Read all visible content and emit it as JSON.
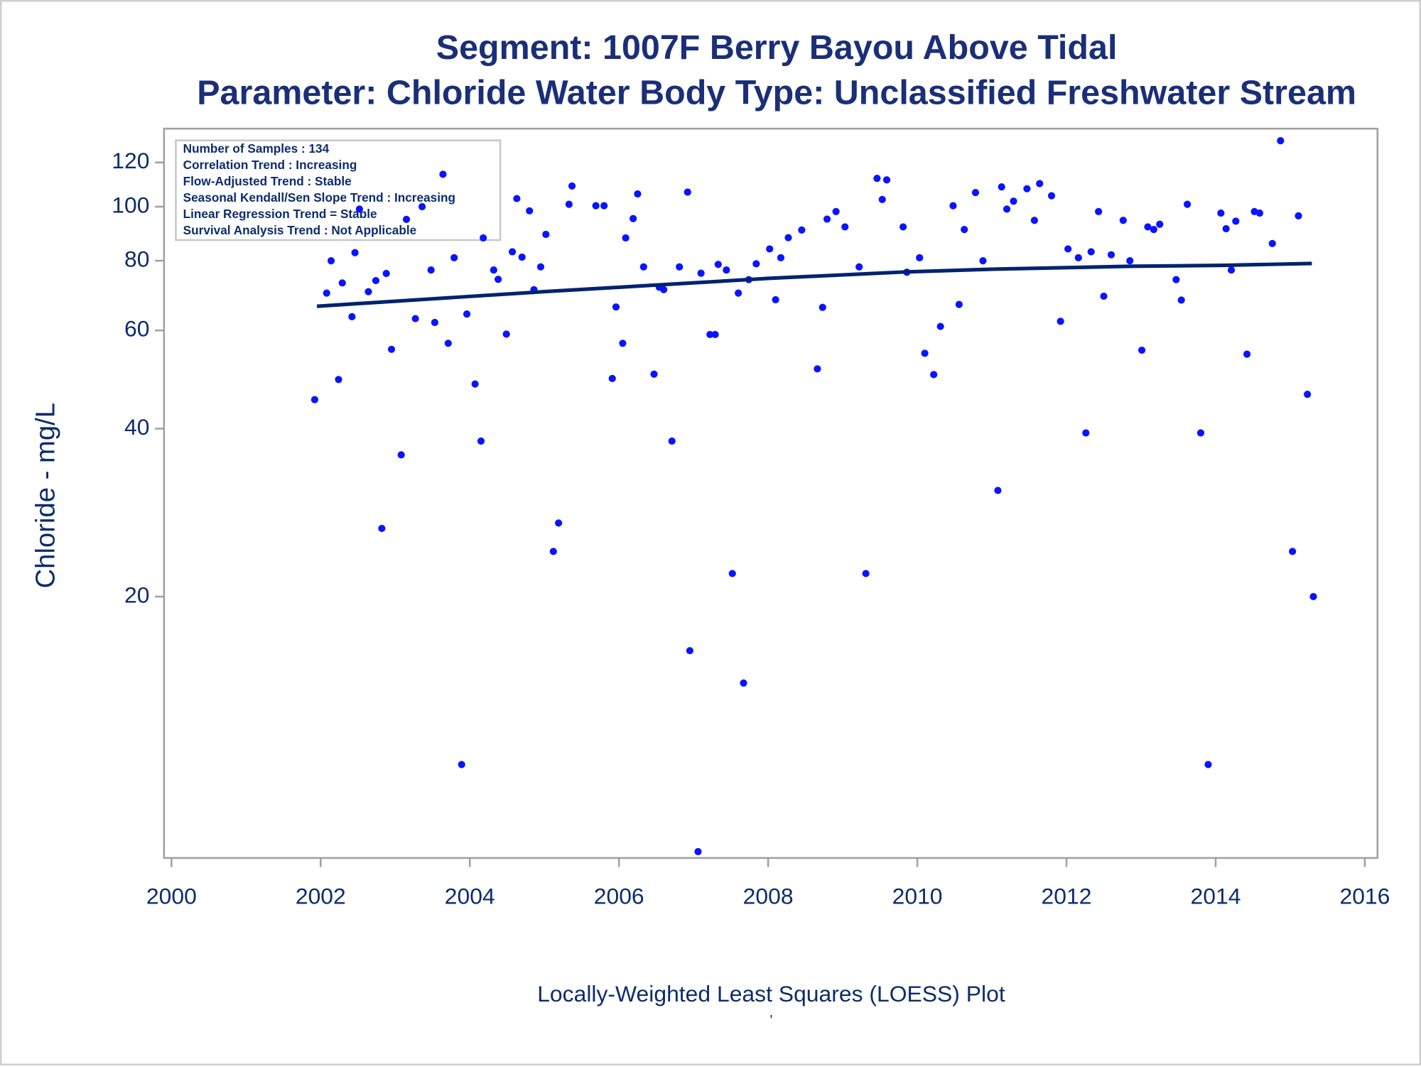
{
  "chart_data": {
    "type": "scatter",
    "title": "Segment: 1007F  Berry Bayou Above Tidal",
    "subtitle": "Parameter: Chloride   Water Body Type: Unclassified Freshwater Stream",
    "annotations": [
      "Number of Samples : 134",
      "Correlation Trend : Increasing",
      "Flow-Adjusted Trend : Stable",
      "Seasonal Kendall/Sen Slope Trend : Increasing",
      "Linear Regression Trend = Stable",
      "Survival Analysis Trend : Not Applicable"
    ],
    "y_label": "Chloride - mg/L",
    "x_label": "Locally-Weighted Least Squares (LOESS) Plot",
    "footnote": "'",
    "xlim": [
      1999.9,
      2016.17
    ],
    "ylim": [
      6.8,
      138
    ],
    "log_y": true,
    "xticks": [
      2000,
      2002,
      2004,
      2006,
      2008,
      2010,
      2012,
      2014,
      2016
    ],
    "yticks": [
      20,
      40,
      60,
      80,
      100,
      120
    ],
    "series": [
      {
        "type": "scatter",
        "color": "#0a14ff",
        "x": [
          2001.92,
          2002.08,
          2002.14,
          2002.24,
          2002.29,
          2002.42,
          2002.46,
          2002.52,
          2002.64,
          2002.74,
          2002.82,
          2002.88,
          2002.95,
          2003.08,
          2003.15,
          2003.27,
          2003.36,
          2003.48,
          2003.53,
          2003.64,
          2003.71,
          2003.79,
          2003.89,
          2003.96,
          2004.07,
          2004.15,
          2004.18,
          2004.32,
          2004.38,
          2004.49,
          2004.57,
          2004.63,
          2004.7,
          2004.8,
          2004.86,
          2004.95,
          2005.02,
          2005.12,
          2005.19,
          2005.33,
          2005.37,
          2005.69,
          2005.8,
          2005.91,
          2005.96,
          2006.05,
          2006.09,
          2006.19,
          2006.25,
          2006.33,
          2006.47,
          2006.54,
          2006.6,
          2006.71,
          2006.81,
          2006.92,
          2006.95,
          2007.06,
          2007.1,
          2007.22,
          2007.29,
          2007.33,
          2007.44,
          2007.52,
          2007.6,
          2007.67,
          2007.74,
          2007.84,
          2008.02,
          2008.1,
          2008.17,
          2008.27,
          2008.45,
          2008.66,
          2008.73,
          2008.79,
          2008.91,
          2009.03,
          2009.22,
          2009.31,
          2009.46,
          2009.53,
          2009.59,
          2009.81,
          2009.86,
          2010.03,
          2010.1,
          2010.22,
          2010.31,
          2010.48,
          2010.56,
          2010.63,
          2010.78,
          2010.88,
          2011.08,
          2011.13,
          2011.2,
          2011.29,
          2011.47,
          2011.57,
          2011.64,
          2011.8,
          2011.92,
          2012.02,
          2012.16,
          2012.26,
          2012.33,
          2012.43,
          2012.5,
          2012.6,
          2012.76,
          2012.85,
          2013.01,
          2013.09,
          2013.17,
          2013.25,
          2013.47,
          2013.54,
          2013.62,
          2013.8,
          2013.9,
          2014.07,
          2014.14,
          2014.21,
          2014.27,
          2014.42,
          2014.52,
          2014.59,
          2014.76,
          2014.87,
          2015.03,
          2015.11,
          2015.23,
          2015.31
        ],
        "values": [
          45.1,
          70,
          80,
          49,
          73,
          63.5,
          82.7,
          99,
          70.4,
          73.7,
          26.5,
          75.9,
          55.5,
          35.9,
          94.9,
          63,
          100,
          77,
          62,
          114.3,
          56.9,
          81,
          10,
          64.2,
          48.1,
          38,
          87.9,
          77,
          74.1,
          59.1,
          83,
          103.4,
          81.2,
          98.3,
          71,
          78,
          89.2,
          24.1,
          27.1,
          101,
          108.9,
          100.4,
          100.4,
          49.2,
          66.1,
          56.9,
          87.9,
          95.2,
          105.4,
          78,
          50.1,
          71.7,
          71,
          38,
          78,
          106.2,
          16,
          6.98,
          76,
          59,
          59,
          78.8,
          77,
          22,
          70,
          14,
          74,
          79,
          84,
          68.1,
          81,
          88,
          90.8,
          51.2,
          66,
          95,
          98,
          92,
          78,
          22,
          112.4,
          103,
          111.7,
          92,
          76.3,
          81,
          54.6,
          50,
          61,
          100.4,
          66.8,
          91,
          106,
          80,
          31,
          108.5,
          99,
          102.3,
          107.7,
          94.5,
          110,
          104.6,
          62.3,
          84,
          81,
          39.3,
          83,
          98,
          69.1,
          82,
          94.5,
          80,
          55.3,
          92,
          91,
          93,
          74,
          68,
          101,
          39.3,
          10,
          97.4,
          91.3,
          77,
          94.2,
          54.4,
          98,
          97.4,
          85.9,
          131.3,
          24.1,
          96.3,
          46.1,
          20
        ]
      },
      {
        "type": "line",
        "color": "#00236e",
        "x": [
          2001.95,
          2004.98,
          2008.02,
          2009.85,
          2011.07,
          2012.89,
          2014.1,
          2015.29
        ],
        "values": [
          66.3,
          70.4,
          74.4,
          76.4,
          77.3,
          78.2,
          78.5,
          79.1
        ]
      }
    ]
  }
}
